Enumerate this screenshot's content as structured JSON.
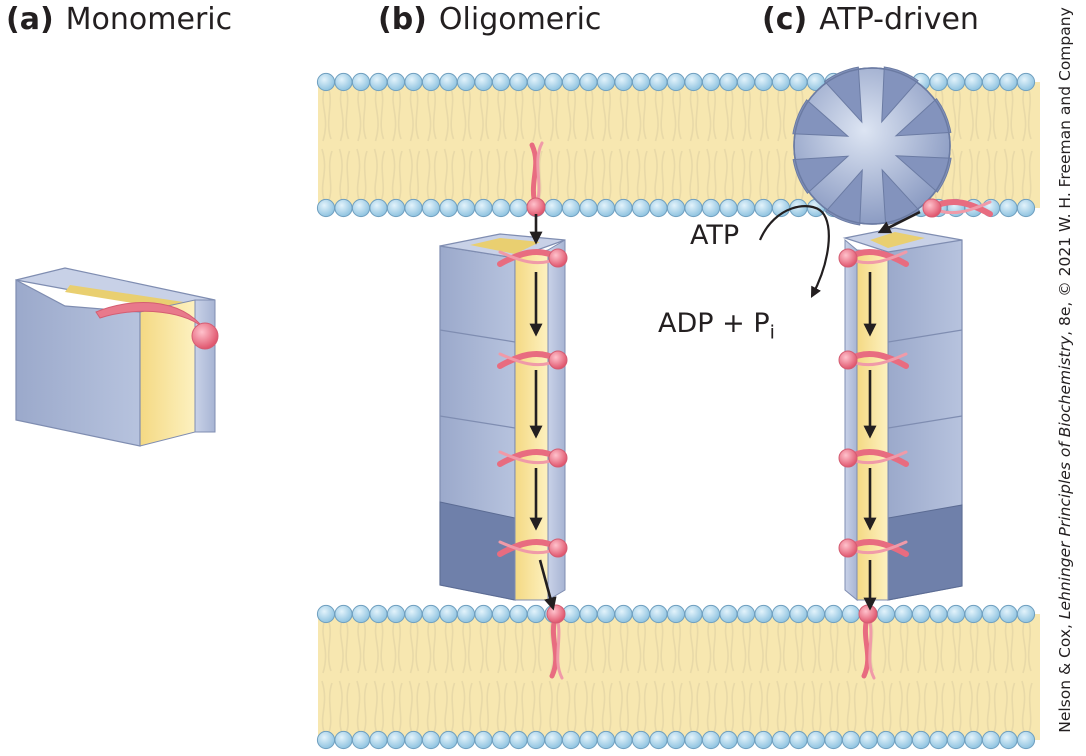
{
  "panels": {
    "a": {
      "letter": "(a)",
      "title": "Monomeric"
    },
    "b": {
      "letter": "(b)",
      "title": "Oligomeric"
    },
    "c": {
      "letter": "(c)",
      "title": "ATP-driven"
    }
  },
  "labels": {
    "atp": "ATP",
    "adp": "ADP + P",
    "adp_subscript": "i"
  },
  "credit": {
    "prefix": "Nelson & Cox, ",
    "book": "Lehninger Principles of Biochemistry",
    "suffix": ", 8e, © 2021 W. H. Freeman and Company"
  },
  "colors": {
    "lipid_head": "#a9d3ea",
    "lipid_head_stroke": "#6f9fbf",
    "bilayer_fill": "#f7e7b0",
    "protein_light": "#c6d0e6",
    "protein_mid": "#9dabcc",
    "protein_dark": "#6f80aa",
    "channel_yellow": "#fbe9a1",
    "lipid_anchor": "#e86c80"
  }
}
